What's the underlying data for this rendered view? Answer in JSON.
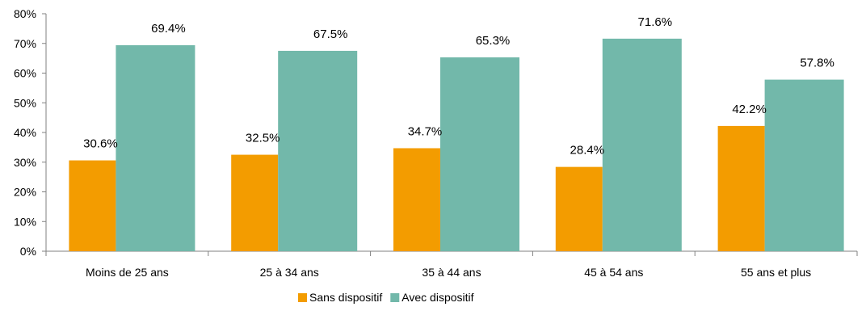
{
  "chart_data": {
    "type": "bar",
    "categories": [
      "Moins de 25 ans",
      "25 à 34 ans",
      "35 à 44 ans",
      "45 à 54 ans",
      "55 ans et plus"
    ],
    "series": [
      {
        "name": "Sans dispositif",
        "values": [
          30.6,
          32.5,
          34.7,
          28.4,
          42.2
        ],
        "labels": [
          "30.6%",
          "32.5%",
          "34.7%",
          "28.4%",
          "42.2%"
        ],
        "color": "#F39C00"
      },
      {
        "name": "Avec dispositif",
        "values": [
          69.4,
          67.5,
          65.3,
          71.6,
          57.8
        ],
        "labels": [
          "69.4%",
          "67.5%",
          "65.3%",
          "71.6%",
          "57.8%"
        ],
        "color": "#72B8AA"
      }
    ],
    "yticks": [
      "0%",
      "10%",
      "20%",
      "30%",
      "40%",
      "50%",
      "60%",
      "70%",
      "80%"
    ],
    "ylim": [
      0,
      80
    ],
    "legend": "bottom",
    "grid": false
  }
}
